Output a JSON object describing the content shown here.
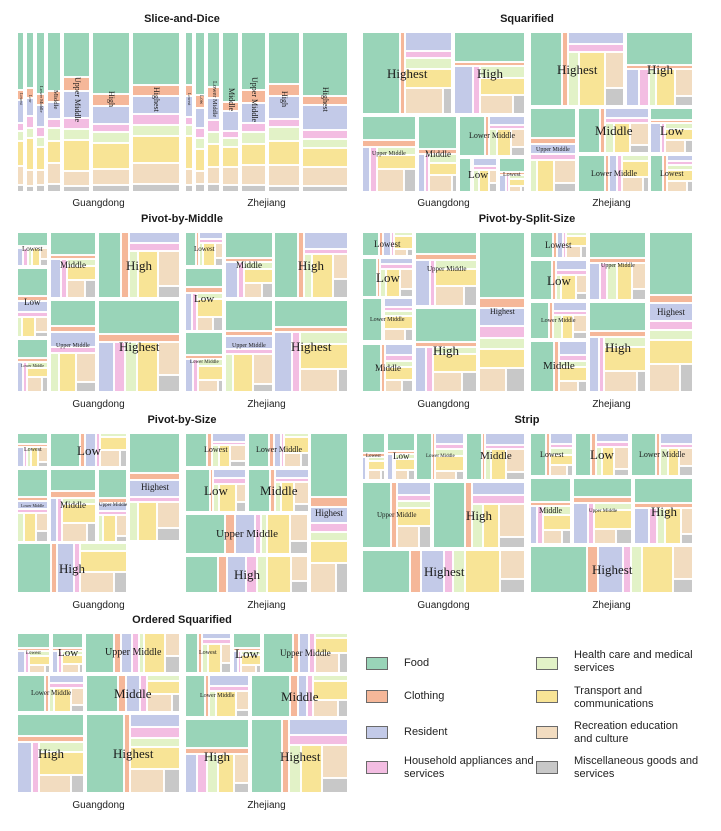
{
  "chart_data": {
    "type": "treemap",
    "region_labels": [
      "Guangdong",
      "Zhejiang"
    ],
    "groups": [
      "Lowest",
      "Low",
      "Lower Middle",
      "Upper Middle",
      "Middle",
      "High",
      "Highest"
    ],
    "categories": [
      {
        "key": "food",
        "name": "Food",
        "color": "#99d4b8"
      },
      {
        "key": "clothing",
        "name": "Clothing",
        "color": "#f5b799"
      },
      {
        "key": "resident",
        "name": "Resident",
        "color": "#c3cae8"
      },
      {
        "key": "household",
        "name": "Household appliances and services",
        "color": "#f3bde2"
      },
      {
        "key": "health",
        "name": "Health care and medical services",
        "color": "#e2f2c7"
      },
      {
        "key": "transport",
        "name": "Transport and communications",
        "color": "#f8e496"
      },
      {
        "key": "recreation",
        "name": "Recreation education and culture",
        "color": "#f2dcc0"
      },
      {
        "key": "misc",
        "name": "Miscellaneous goods and services",
        "color": "#c8c8c8"
      }
    ],
    "expenditure_shares": [
      0.36,
      0.07,
      0.13,
      0.06,
      0.07,
      0.15,
      0.11,
      0.05
    ],
    "panels": [
      {
        "title": "Slice-and-Dice",
        "sublabels": [
          "Guangdong",
          "Zhejiang"
        ],
        "maps": [
          {
            "groups": [
              {
                "label": "Lowest",
                "size": 0.8
              },
              {
                "label": "Low",
                "size": 0.9
              },
              {
                "label": "Lower Middle",
                "size": 1.0
              },
              {
                "label": "Middle",
                "size": 1.4
              },
              {
                "label": "Upper Middle",
                "size": 2.6
              },
              {
                "label": "High",
                "size": 3.6
              },
              {
                "label": "Highest",
                "size": 4.6
              }
            ]
          },
          {
            "groups": [
              {
                "label": "Lowest",
                "size": 0.8
              },
              {
                "label": "Low",
                "size": 1.0
              },
              {
                "label": "Lower Middle",
                "size": 1.2
              },
              {
                "label": "Middle",
                "size": 1.6
              },
              {
                "label": "Upper Middle",
                "size": 2.2
              },
              {
                "label": "High",
                "size": 2.8
              },
              {
                "label": "Highest",
                "size": 4.0
              }
            ]
          }
        ]
      },
      {
        "title": "Squarified",
        "sublabels": [
          "Guangdong",
          "Zhejiang"
        ],
        "maps": [
          {
            "groups": [
              {
                "label": "Highest"
              },
              {
                "label": "High"
              },
              {
                "label": "Upper Middle"
              },
              {
                "label": "Middle"
              },
              {
                "label": "Lower Middle"
              },
              {
                "label": "Low"
              },
              {
                "label": "Lowest"
              }
            ]
          },
          {
            "groups": [
              {
                "label": "Highest"
              },
              {
                "label": "High"
              },
              {
                "label": "Upper Middle"
              },
              {
                "label": "Middle"
              },
              {
                "label": "Low"
              },
              {
                "label": "Lower Middle"
              },
              {
                "label": "Lowest"
              }
            ]
          }
        ]
      },
      {
        "title": "Pivot-by-Middle",
        "sublabels": [
          "Guangdong",
          "Zhejiang"
        ],
        "maps": [
          {
            "groups": [
              {
                "label": "Lowest"
              },
              {
                "label": "Middle"
              },
              {
                "label": "High"
              },
              {
                "label": "Low"
              },
              {
                "label": "Lower Middle"
              },
              {
                "label": "Upper Middle"
              },
              {
                "label": "Highest"
              }
            ]
          },
          {
            "groups": [
              {
                "label": "Lowest"
              },
              {
                "label": "Middle"
              },
              {
                "label": "High"
              },
              {
                "label": "Low"
              },
              {
                "label": "Lower Middle"
              },
              {
                "label": "Upper Middle"
              },
              {
                "label": "Highest"
              }
            ]
          }
        ]
      },
      {
        "title": "Pivot-by-Split-Size",
        "sublabels": [
          "Guangdong",
          "Zhejiang"
        ],
        "maps": [
          {
            "groups": [
              {
                "label": "Lowest"
              },
              {
                "label": "Low"
              },
              {
                "label": "Lower Middle"
              },
              {
                "label": "Middle"
              },
              {
                "label": "Upper Middle"
              },
              {
                "label": "High"
              },
              {
                "label": "Highest"
              }
            ]
          },
          {
            "groups": [
              {
                "label": "Lowest"
              },
              {
                "label": "Low"
              },
              {
                "label": "Lower Middle"
              },
              {
                "label": "Middle"
              },
              {
                "label": "Upper Middle"
              },
              {
                "label": "High"
              },
              {
                "label": "Highest"
              }
            ]
          }
        ]
      },
      {
        "title": "Pivot-by-Size",
        "sublabels": [
          "Guangdong",
          "Zhejiang"
        ],
        "maps": [
          {
            "groups": [
              {
                "label": "Lowest"
              },
              {
                "label": "Low"
              },
              {
                "label": "Lower Middle"
              },
              {
                "label": "Middle"
              },
              {
                "label": "Upper Middle"
              },
              {
                "label": "Highest"
              },
              {
                "label": "High"
              }
            ]
          },
          {
            "groups": [
              {
                "label": "Lowest"
              },
              {
                "label": "Lower Middle"
              },
              {
                "label": "Low"
              },
              {
                "label": "Middle"
              },
              {
                "label": "Upper Middle"
              },
              {
                "label": "High"
              },
              {
                "label": "Highest"
              }
            ]
          }
        ]
      },
      {
        "title": "Strip",
        "sublabels": [
          "Guangdong"
        ],
        "maps": [
          {
            "groups": [
              {
                "label": "Lowest"
              },
              {
                "label": "Low"
              },
              {
                "label": "Lower Middle"
              },
              {
                "label": "Middle"
              },
              {
                "label": "Upper Middle"
              },
              {
                "label": "High"
              },
              {
                "label": "Highest"
              }
            ]
          }
        ]
      },
      {
        "title": "Strip",
        "sublabels": [
          "Zhejiang"
        ],
        "maps": [
          {
            "groups": [
              {
                "label": "Lowest"
              },
              {
                "label": "Low"
              },
              {
                "label": "Lower Middle"
              },
              {
                "label": "Middle"
              },
              {
                "label": "Upper Middle"
              },
              {
                "label": "High"
              },
              {
                "label": "Highest"
              }
            ]
          }
        ]
      },
      {
        "title": "Ordered Squarified",
        "sublabels": [
          "Guangdong",
          "Zhejiang"
        ],
        "maps": [
          {
            "groups": [
              {
                "label": "Lowest"
              },
              {
                "label": "Low"
              },
              {
                "label": "Upper Middle"
              },
              {
                "label": "Lower Middle"
              },
              {
                "label": "Middle"
              },
              {
                "label": "High"
              },
              {
                "label": "Highest"
              }
            ]
          },
          {
            "groups": [
              {
                "label": "Lowest"
              },
              {
                "label": "Low"
              },
              {
                "label": "Upper Middle"
              },
              {
                "label": "Lower Middle"
              },
              {
                "label": "Middle"
              },
              {
                "label": "High"
              },
              {
                "label": "Highest"
              }
            ]
          }
        ]
      }
    ]
  }
}
